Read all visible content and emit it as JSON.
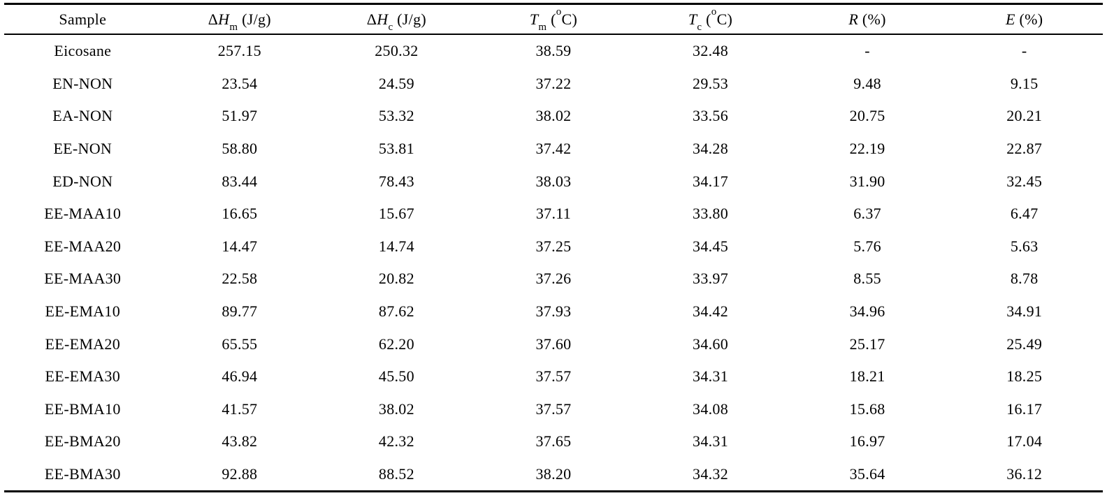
{
  "page": {
    "background_color": "#ffffff",
    "text_color": "#000000",
    "rule_color": "#000000"
  },
  "table": {
    "headers": [
      {
        "name": "sample",
        "segments": [
          {
            "t": "Sample",
            "s": "plain"
          }
        ]
      },
      {
        "name": "delta-h-m",
        "segments": [
          {
            "t": "Δ",
            "s": "plain"
          },
          {
            "t": "H",
            "s": "italic"
          },
          {
            "t": "m",
            "s": "sub"
          },
          {
            "t": " (J/g)",
            "s": "plain"
          }
        ]
      },
      {
        "name": "delta-h-c",
        "segments": [
          {
            "t": "Δ",
            "s": "plain"
          },
          {
            "t": "H",
            "s": "italic"
          },
          {
            "t": "c",
            "s": "sub"
          },
          {
            "t": " (J/g)",
            "s": "plain"
          }
        ]
      },
      {
        "name": "t-m",
        "segments": [
          {
            "t": "T",
            "s": "italic"
          },
          {
            "t": "m",
            "s": "sub"
          },
          {
            "t": " (",
            "s": "plain"
          },
          {
            "t": "o",
            "s": "sup"
          },
          {
            "t": "C)",
            "s": "plain"
          }
        ]
      },
      {
        "name": "t-c",
        "segments": [
          {
            "t": "T",
            "s": "italic"
          },
          {
            "t": "c",
            "s": "sub"
          },
          {
            "t": " (",
            "s": "plain"
          },
          {
            "t": "o",
            "s": "sup"
          },
          {
            "t": "C)",
            "s": "plain"
          }
        ]
      },
      {
        "name": "r-percent",
        "segments": [
          {
            "t": "R",
            "s": "italic"
          },
          {
            "t": " (%)",
            "s": "plain"
          }
        ]
      },
      {
        "name": "e-percent",
        "segments": [
          {
            "t": "E",
            "s": "italic"
          },
          {
            "t": " (%)",
            "s": "plain"
          }
        ]
      }
    ],
    "rows": [
      [
        "Eicosane",
        "257.15",
        "250.32",
        "38.59",
        "32.48",
        "-",
        "-"
      ],
      [
        "EN-NON",
        "23.54",
        "24.59",
        "37.22",
        "29.53",
        "9.48",
        "9.15"
      ],
      [
        "EA-NON",
        "51.97",
        "53.32",
        "38.02",
        "33.56",
        "20.75",
        "20.21"
      ],
      [
        "EE-NON",
        "58.80",
        "53.81",
        "37.42",
        "34.28",
        "22.19",
        "22.87"
      ],
      [
        "ED-NON",
        "83.44",
        "78.43",
        "38.03",
        "34.17",
        "31.90",
        "32.45"
      ],
      [
        "EE-MAA10",
        "16.65",
        "15.67",
        "37.11",
        "33.80",
        "6.37",
        "6.47"
      ],
      [
        "EE-MAA20",
        "14.47",
        "14.74",
        "37.25",
        "34.45",
        "5.76",
        "5.63"
      ],
      [
        "EE-MAA30",
        "22.58",
        "20.82",
        "37.26",
        "33.97",
        "8.55",
        "8.78"
      ],
      [
        "EE-EMA10",
        "89.77",
        "87.62",
        "37.93",
        "34.42",
        "34.96",
        "34.91"
      ],
      [
        "EE-EMA20",
        "65.55",
        "62.20",
        "37.60",
        "34.60",
        "25.17",
        "25.49"
      ],
      [
        "EE-EMA30",
        "46.94",
        "45.50",
        "37.57",
        "34.31",
        "18.21",
        "18.25"
      ],
      [
        "EE-BMA10",
        "41.57",
        "38.02",
        "37.57",
        "34.08",
        "15.68",
        "16.17"
      ],
      [
        "EE-BMA20",
        "43.82",
        "42.32",
        "37.65",
        "34.31",
        "16.97",
        "17.04"
      ],
      [
        "EE-BMA30",
        "92.88",
        "88.52",
        "38.20",
        "34.32",
        "35.64",
        "36.12"
      ]
    ]
  }
}
